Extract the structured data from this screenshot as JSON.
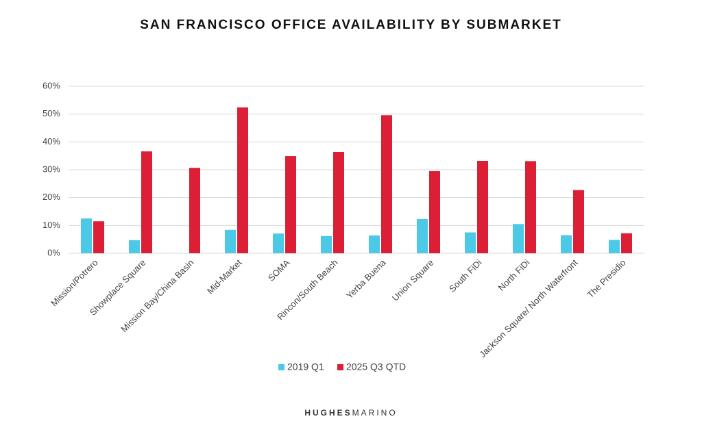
{
  "chart_data": {
    "type": "bar",
    "title": "SAN FRANCISCO OFFICE AVAILABILITY BY SUBMARKET",
    "categories": [
      "Mission/Potrero",
      "Showplace Square",
      "Mission Bay/China Basin",
      "Mid-Market",
      "SOMA",
      "Rincon/South Beach",
      "Yerba Buena",
      "Union Square",
      "South FiDi",
      "North FiDi",
      "Jackson Square/ North Waterfront",
      "The Presidio"
    ],
    "series": [
      {
        "name": "2019 Q1",
        "color": "#4cc9e6",
        "values": [
          12.5,
          4.7,
          null,
          8.4,
          7.1,
          6.2,
          6.4,
          12.3,
          7.5,
          10.5,
          6.5,
          4.8
        ]
      },
      {
        "name": "2025 Q3 QTD",
        "color": "#dc1f35",
        "values": [
          11.5,
          36.6,
          30.7,
          52.4,
          34.9,
          36.4,
          49.6,
          29.5,
          33.2,
          33.1,
          22.7,
          7.2
        ]
      }
    ],
    "ylim": [
      0,
      60
    ],
    "yticks": [
      {
        "value": 0,
        "label": "0%"
      },
      {
        "value": 10,
        "label": "10%"
      },
      {
        "value": 20,
        "label": "20%"
      },
      {
        "value": 30,
        "label": "30%"
      },
      {
        "value": 40,
        "label": "40%"
      },
      {
        "value": 50,
        "label": "50%"
      },
      {
        "value": 60,
        "label": "60%"
      }
    ],
    "grid": true
  },
  "footer": {
    "brand_bold": "HUGHES",
    "brand_light": "MARINO"
  }
}
